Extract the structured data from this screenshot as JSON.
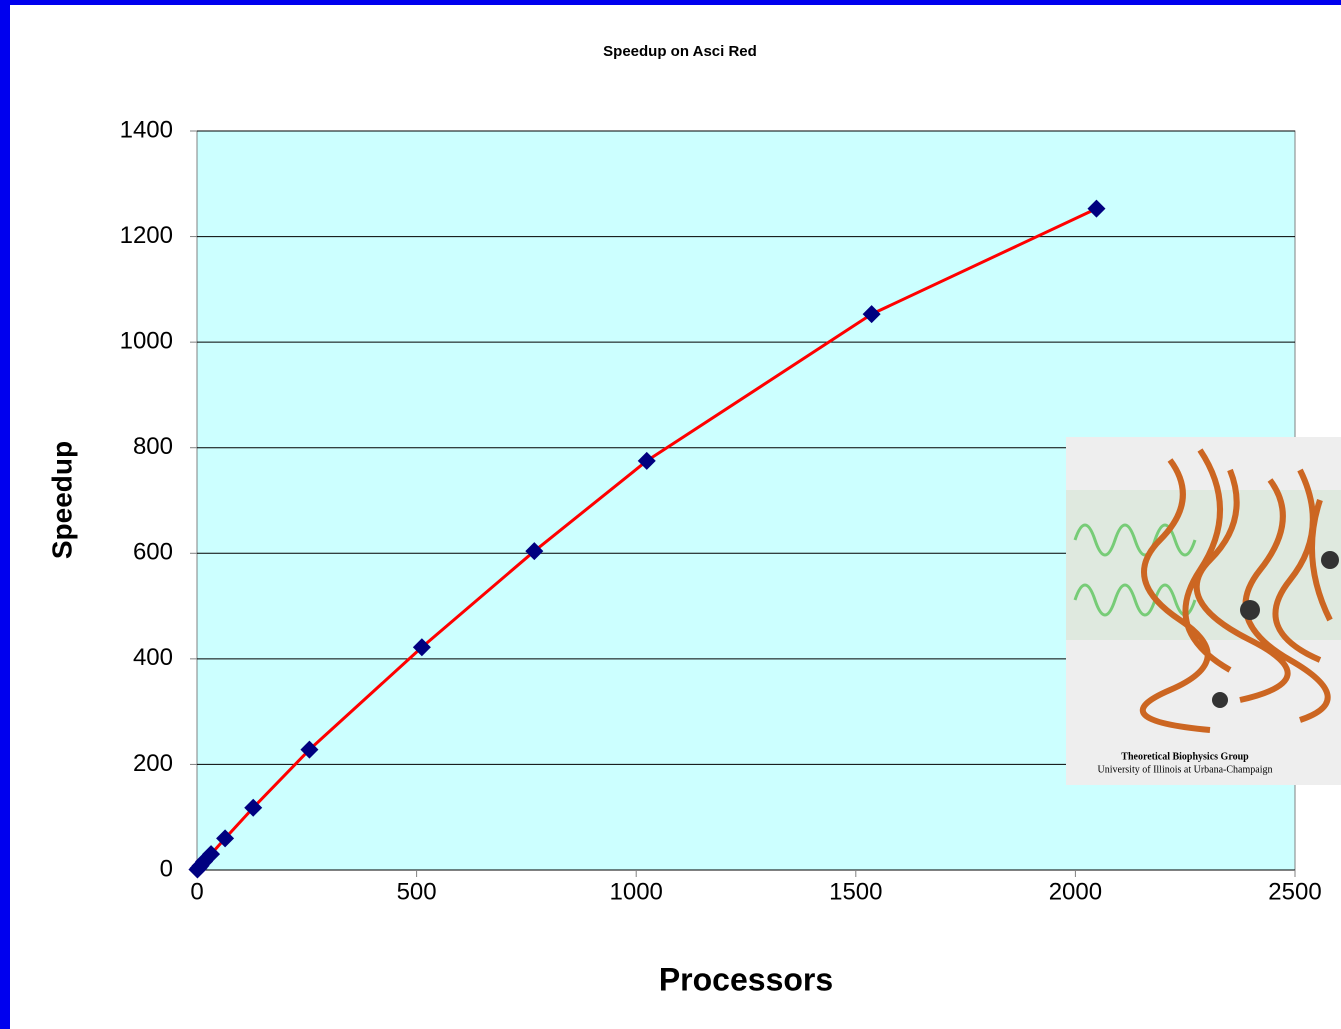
{
  "chart_data": {
    "type": "line",
    "title": "Speedup on Asci Red",
    "x_label": "Processors",
    "y_label": "Speedup",
    "x": [
      1,
      4,
      8,
      16,
      32,
      64,
      128,
      256,
      512,
      768,
      1024,
      1536,
      2048
    ],
    "series": [
      {
        "name": "Speedup",
        "color": "#000080",
        "line_color": "#ff0000",
        "values": [
          1,
          4,
          8,
          16,
          30,
          60,
          118,
          228,
          422,
          604,
          775,
          1053,
          1253
        ]
      }
    ],
    "xlim": [
      0,
      2500
    ],
    "xticks": [
      0,
      500,
      1000,
      1500,
      2000,
      2500
    ],
    "ylim": [
      0,
      1400
    ],
    "yticks": [
      0,
      200,
      400,
      600,
      800,
      1000,
      1200,
      1400
    ],
    "grid": true,
    "inset": {
      "lines": [
        "Theoretical Biophysics Group",
        "University of Illinois at Urbana-Champaign"
      ]
    }
  }
}
